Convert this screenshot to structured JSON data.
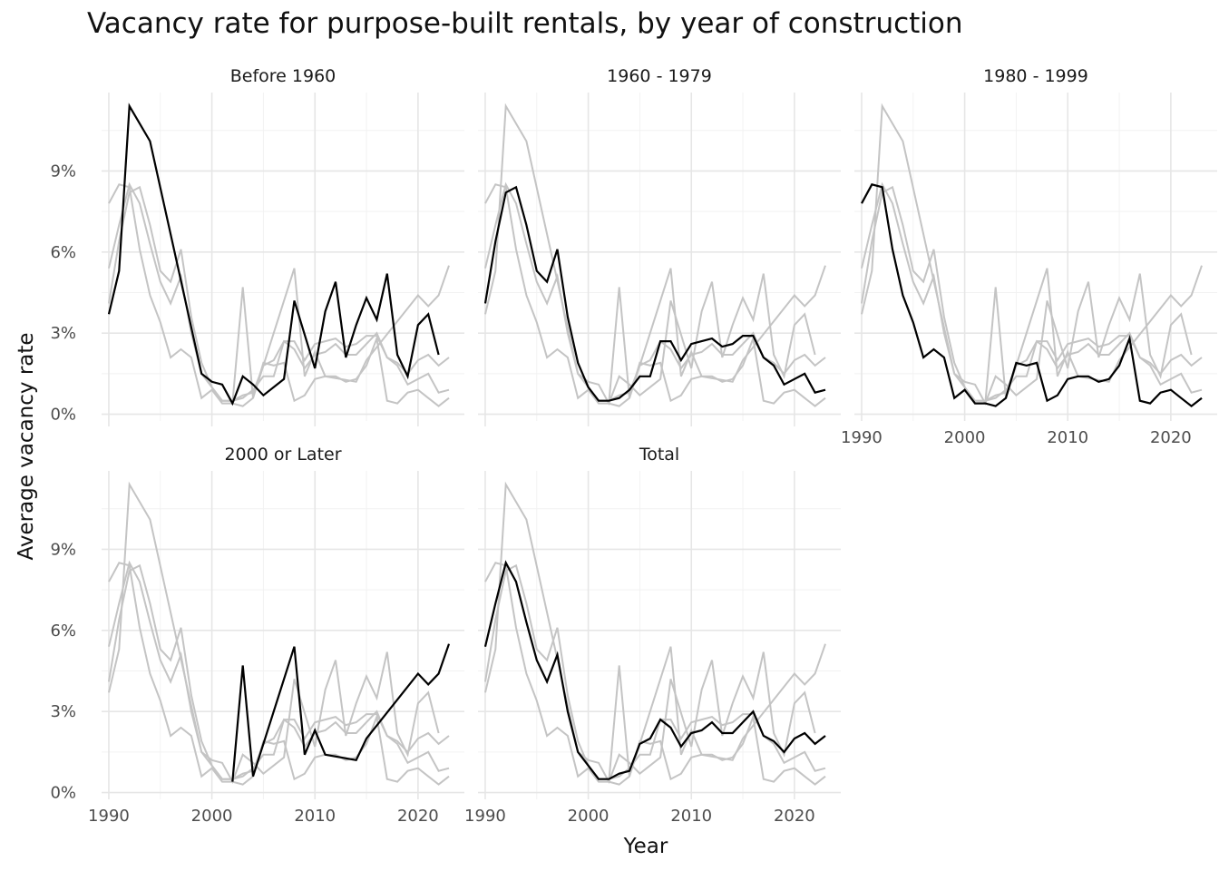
{
  "chart_data": {
    "type": "line",
    "title": "Vacancy rate for purpose-built rentals, by year of construction",
    "xlabel": "Year",
    "ylabel": "Average vacancy rate",
    "xlim": [
      1989.3,
      2024.5
    ],
    "ylim": [
      -0.25,
      11.9
    ],
    "x_ticks": [
      1990,
      2000,
      2010,
      2020
    ],
    "y_ticks": [
      0,
      3,
      6,
      9
    ],
    "y_tick_labels": [
      "0%",
      "3%",
      "6%",
      "9%"
    ],
    "grid": true,
    "x": [
      1990,
      1991,
      1992,
      1993,
      1994,
      1995,
      1996,
      1997,
      1998,
      1999,
      2000,
      2001,
      2002,
      2003,
      2004,
      2005,
      2006,
      2007,
      2008,
      2009,
      2010,
      2011,
      2012,
      2013,
      2014,
      2015,
      2016,
      2017,
      2018,
      2019,
      2020,
      2021,
      2022,
      2023
    ],
    "series": [
      {
        "name": "Before 1960",
        "values": [
          3.7,
          5.3,
          11.4,
          null,
          10.1,
          null,
          null,
          null,
          null,
          1.5,
          1.2,
          1.1,
          0.4,
          1.4,
          1.1,
          0.7,
          null,
          1.3,
          4.2,
          null,
          1.7,
          3.8,
          4.9,
          2.1,
          3.3,
          4.3,
          3.5,
          5.2,
          2.2,
          1.4,
          3.3,
          3.7,
          2.2,
          null
        ]
      },
      {
        "name": "1960 - 1979",
        "values": [
          4.1,
          6.4,
          8.2,
          8.4,
          7.0,
          5.3,
          4.9,
          6.1,
          3.6,
          1.9,
          1.0,
          0.5,
          0.5,
          0.6,
          0.9,
          1.4,
          1.4,
          2.7,
          2.7,
          2.0,
          2.6,
          2.7,
          2.8,
          2.5,
          2.6,
          2.9,
          2.9,
          2.1,
          1.8,
          1.1,
          1.3,
          1.5,
          0.8,
          0.9
        ]
      },
      {
        "name": "1980 - 1999",
        "values": [
          7.8,
          8.5,
          8.4,
          6.1,
          4.4,
          3.4,
          2.1,
          2.4,
          2.1,
          0.6,
          0.9,
          0.4,
          0.4,
          0.3,
          0.6,
          1.9,
          1.8,
          1.9,
          0.5,
          0.7,
          1.3,
          1.4,
          1.4,
          1.2,
          1.3,
          1.8,
          2.8,
          0.5,
          0.4,
          0.8,
          0.9,
          0.6,
          0.3,
          0.6
        ]
      },
      {
        "name": "2000 or Later",
        "values": [
          null,
          null,
          null,
          null,
          null,
          null,
          null,
          null,
          null,
          null,
          null,
          null,
          0.4,
          4.7,
          0.6,
          null,
          null,
          null,
          5.4,
          1.4,
          2.3,
          1.4,
          null,
          null,
          1.2,
          2.0,
          null,
          null,
          null,
          null,
          4.4,
          4.0,
          4.4,
          5.5
        ]
      },
      {
        "name": "Total",
        "values": [
          5.4,
          7.0,
          8.5,
          7.8,
          6.3,
          4.9,
          4.1,
          5.1,
          3.0,
          1.5,
          1.0,
          0.5,
          0.5,
          0.7,
          0.8,
          1.8,
          2.0,
          2.7,
          2.4,
          1.7,
          2.2,
          2.3,
          2.6,
          2.2,
          2.2,
          2.6,
          3.0,
          2.1,
          1.9,
          1.5,
          2.0,
          2.2,
          1.8,
          2.1
        ]
      }
    ],
    "panels": [
      {
        "title": "Before 1960",
        "x_axis_labels": false,
        "y_axis_labels": true
      },
      {
        "title": "1960 - 1979",
        "x_axis_labels": false,
        "y_axis_labels": false
      },
      {
        "title": "1980 - 1999",
        "x_axis_labels": true,
        "y_axis_labels": false
      },
      {
        "title": "2000 or Later",
        "x_axis_labels": true,
        "y_axis_labels": true
      },
      {
        "title": "Total",
        "x_axis_labels": true,
        "y_axis_labels": false
      }
    ],
    "highlight_color": "#000000",
    "context_color": "#c4c4c4"
  }
}
